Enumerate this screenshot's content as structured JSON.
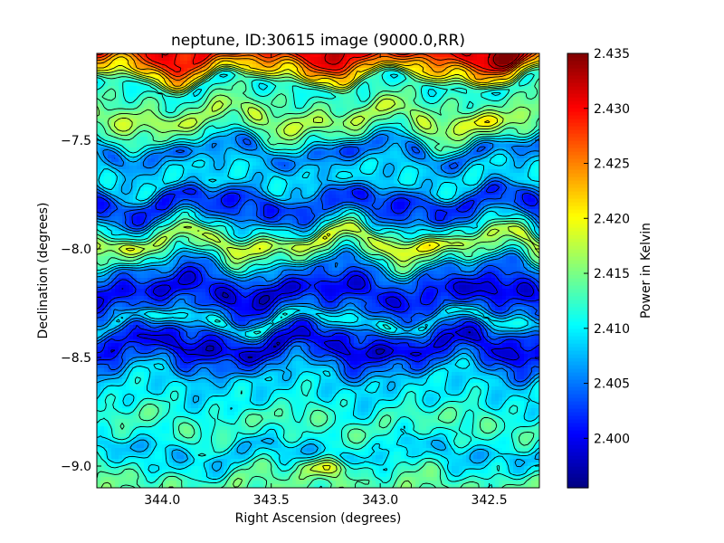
{
  "chart_data": {
    "type": "heatmap",
    "title": "neptune, ID:30615 image (9000.0,RR)",
    "xlabel": "Right Ascension (degrees)",
    "ylabel": "Declination (degrees)",
    "xlim": [
      344.3,
      342.27
    ],
    "ylim": [
      -9.1,
      -7.1
    ],
    "x_ticks": [
      344.0,
      343.5,
      343.0,
      342.5
    ],
    "x_tick_labels": [
      "344.0",
      "343.5",
      "343.0",
      "342.5"
    ],
    "y_ticks": [
      -7.5,
      -8.0,
      -8.5,
      -9.0
    ],
    "y_tick_labels": [
      "−7.5",
      "−8.0",
      "−8.5",
      "−9.0"
    ],
    "colorbar": {
      "label": "Power in Kelvin",
      "range": [
        2.3955,
        2.435
      ],
      "ticks": [
        2.4,
        2.405,
        2.41,
        2.415,
        2.42,
        2.425,
        2.43,
        2.435
      ],
      "tick_labels": [
        "2.400",
        "2.405",
        "2.410",
        "2.415",
        "2.420",
        "2.425",
        "2.430",
        "2.435"
      ],
      "colormap": "jet"
    },
    "contours": true,
    "dec_profile": {
      "dec": [
        -7.1,
        -7.18,
        -7.25,
        -7.32,
        -7.4,
        -7.47,
        -7.55,
        -7.63,
        -7.7,
        -7.78,
        -7.83,
        -7.9,
        -7.97,
        -8.03,
        -8.1,
        -8.2,
        -8.28,
        -8.33,
        -8.4,
        -8.45,
        -8.52,
        -8.6,
        -8.7,
        -8.8,
        -8.88,
        -8.93,
        -9.0,
        -9.05,
        -9.1
      ],
      "kelvin": [
        2.43,
        2.422,
        2.411,
        2.413,
        2.417,
        2.413,
        2.405,
        2.409,
        2.409,
        2.402,
        2.403,
        2.41,
        2.418,
        2.413,
        2.405,
        2.4,
        2.404,
        2.41,
        2.402,
        2.399,
        2.404,
        2.409,
        2.41,
        2.413,
        2.411,
        2.408,
        2.41,
        2.413,
        2.414
      ]
    },
    "hotspots": [
      {
        "ra": 342.42,
        "dec": -7.12,
        "kelvin": 2.434
      },
      {
        "ra": 343.0,
        "dec": -7.1,
        "kelvin": 2.433
      },
      {
        "ra": 343.3,
        "dec": -7.11,
        "kelvin": 2.431
      },
      {
        "ra": 342.52,
        "dec": -7.43,
        "kelvin": 2.419
      },
      {
        "ra": 342.87,
        "dec": -7.98,
        "kelvin": 2.421
      },
      {
        "ra": 343.6,
        "dec": -8.21,
        "kelvin": 2.397
      },
      {
        "ra": 342.55,
        "dec": -8.21,
        "kelvin": 2.398
      },
      {
        "ra": 343.2,
        "dec": -7.57,
        "kelvin": 2.403
      },
      {
        "ra": 343.25,
        "dec": -9.01,
        "kelvin": 2.42
      }
    ]
  }
}
